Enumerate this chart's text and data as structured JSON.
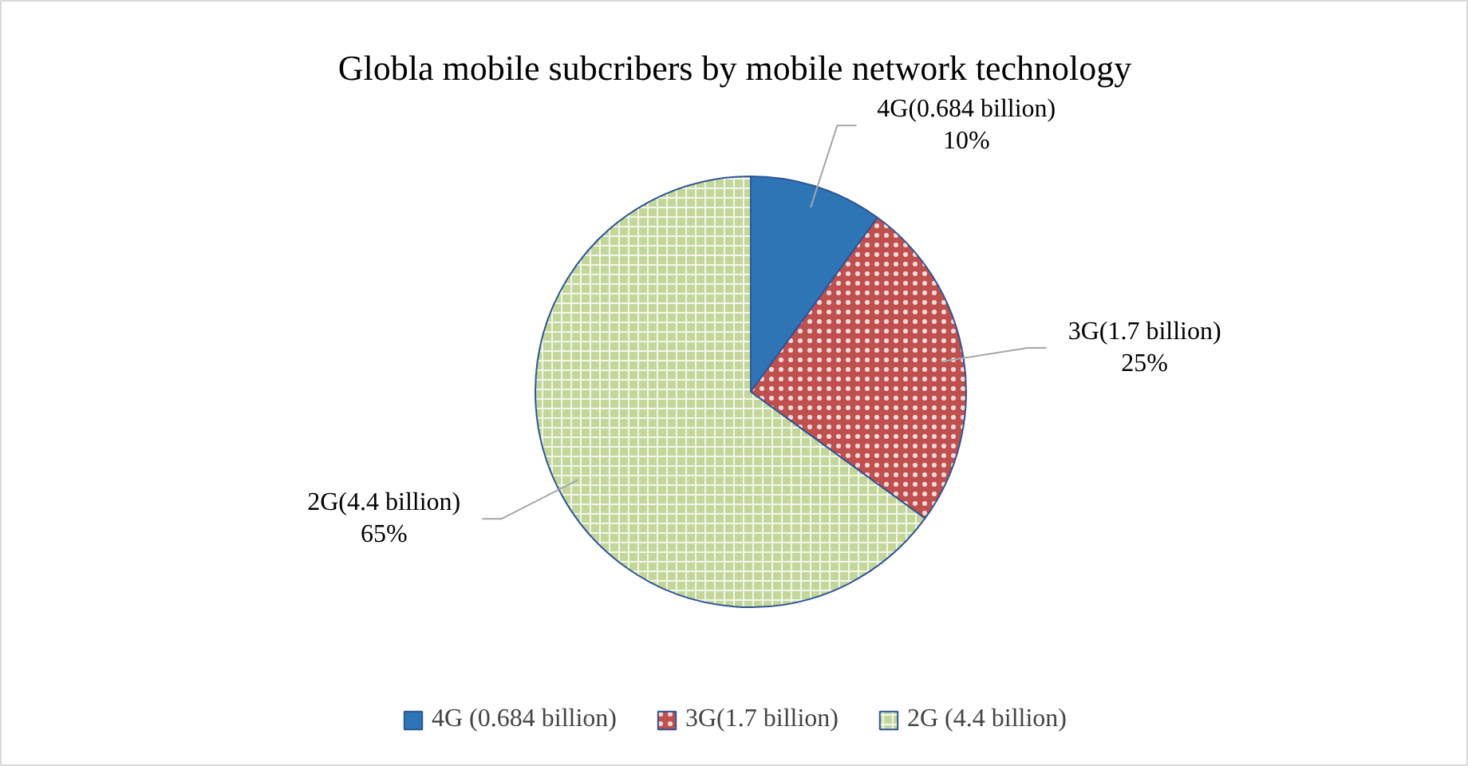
{
  "chart_data": {
    "type": "pie",
    "title": "Globla mobile subcribers by mobile network technology",
    "categories": [
      "4G (0.684 billion)",
      "3G(1.7 billion)",
      "2G (4.4 billion)"
    ],
    "values": [
      10,
      25,
      65
    ],
    "colors": [
      "#2e75b6",
      "#c0504d",
      "#c4d79b"
    ],
    "value_labels": [
      "4G(0.684 billion)\n10%",
      "3G(1.7 billion)\n25%",
      "2G(4.4 billion)\n65%"
    ],
    "legend": "bottom"
  }
}
